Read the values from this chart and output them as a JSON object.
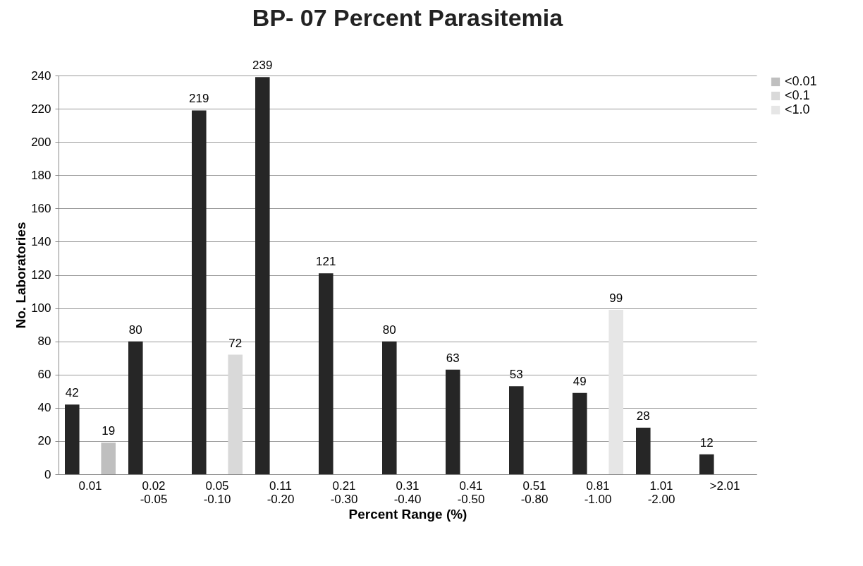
{
  "chart_data": {
    "type": "bar",
    "title": "BP- 07 Percent Parasitemia",
    "xlabel": "Percent Range (%)",
    "ylabel": "No. Laboratories",
    "categories": [
      "0.01",
      "0.02\n-0.05",
      "0.05\n-0.10",
      "0.11\n-0.20",
      "0.21\n-0.30",
      "0.31\n-0.40",
      "0.41\n-0.50",
      "0.51\n-0.80",
      "0.81\n-1.00",
      "1.01\n-2.00",
      ">2.01"
    ],
    "series": [
      {
        "color": "#262626",
        "values": [
          42,
          80,
          219,
          239,
          121,
          80,
          63,
          53,
          49,
          28,
          12
        ]
      },
      {
        "name": "<0.01",
        "color": "#bfbfbf",
        "values": [
          19,
          null,
          null,
          null,
          null,
          null,
          null,
          null,
          null,
          null,
          null
        ]
      },
      {
        "name": "<0.1",
        "color": "#d9d9d9",
        "values": [
          null,
          null,
          72,
          null,
          null,
          null,
          null,
          null,
          null,
          null,
          null
        ]
      },
      {
        "name": "<1.0",
        "color": "#e6e6e6",
        "values": [
          null,
          null,
          null,
          null,
          null,
          null,
          null,
          null,
          99,
          null,
          null
        ]
      }
    ],
    "ylim": [
      0,
      240
    ],
    "yticks": [
      0,
      20,
      40,
      60,
      80,
      100,
      120,
      140,
      160,
      180,
      200,
      220,
      240
    ],
    "grid": "y",
    "legend": "right",
    "data_labels": true
  }
}
